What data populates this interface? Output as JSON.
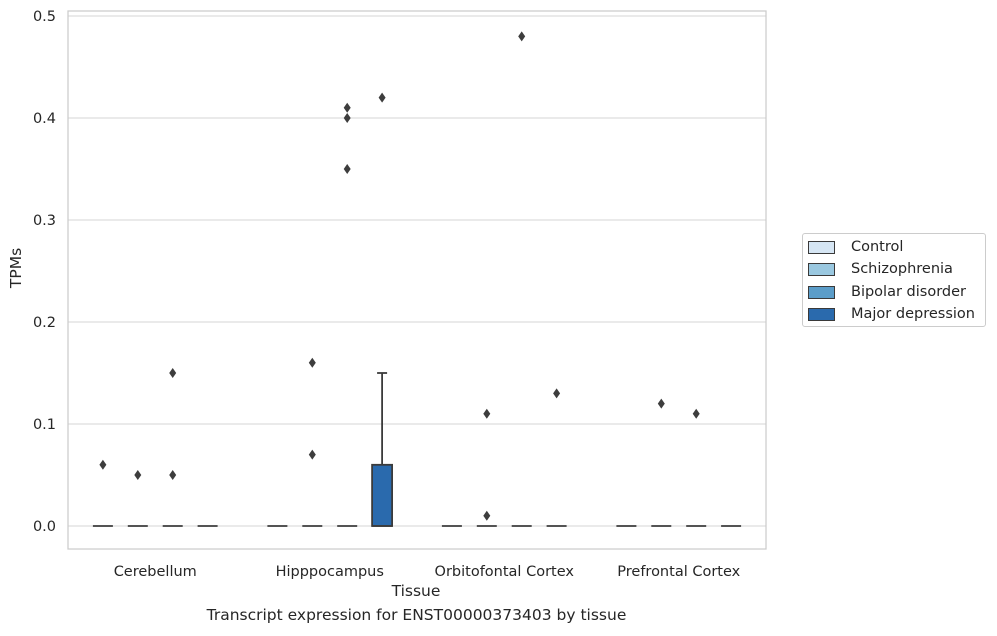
{
  "chart_data": {
    "type": "box",
    "title": "",
    "caption": "Transcript expression for ENST00000373403 by tissue",
    "xlabel": "Tissue",
    "ylabel": "TPMs",
    "ylim": [
      -0.023,
      0.505
    ],
    "yticks": [
      "0.0",
      "0.1",
      "0.2",
      "0.3",
      "0.4",
      "0.5"
    ],
    "ytick_values": [
      0.0,
      0.1,
      0.2,
      0.3,
      0.4,
      0.5
    ],
    "grid": "horizontal",
    "legend_position": "right",
    "categories": [
      "Cerebellum",
      "Hipppocampus",
      "Orbitofontal Cortex",
      "Prefrontal Cortex"
    ],
    "series": [
      {
        "name": "Control",
        "color": "#d6e6f4",
        "boxes": [
          {
            "q1": 0,
            "median": 0,
            "q3": 0,
            "whisker_low": 0,
            "whisker_high": 0,
            "outliers": [
              0.06
            ]
          },
          {
            "q1": 0,
            "median": 0,
            "q3": 0,
            "whisker_low": 0,
            "whisker_high": 0,
            "outliers": []
          },
          {
            "q1": 0,
            "median": 0,
            "q3": 0,
            "whisker_low": 0,
            "whisker_high": 0,
            "outliers": []
          },
          {
            "q1": 0,
            "median": 0,
            "q3": 0,
            "whisker_low": 0,
            "whisker_high": 0,
            "outliers": []
          }
        ]
      },
      {
        "name": "Schizophrenia",
        "color": "#9ac8e0",
        "boxes": [
          {
            "q1": 0,
            "median": 0,
            "q3": 0,
            "whisker_low": 0,
            "whisker_high": 0,
            "outliers": [
              0.05
            ]
          },
          {
            "q1": 0,
            "median": 0,
            "q3": 0,
            "whisker_low": 0,
            "whisker_high": 0,
            "outliers": [
              0.07,
              0.16
            ]
          },
          {
            "q1": 0,
            "median": 0,
            "q3": 0,
            "whisker_low": 0,
            "whisker_high": 0,
            "outliers": [
              0.01,
              0.11
            ]
          },
          {
            "q1": 0,
            "median": 0,
            "q3": 0,
            "whisker_low": 0,
            "whisker_high": 0,
            "outliers": [
              0.12
            ]
          }
        ]
      },
      {
        "name": "Bipolar disorder",
        "color": "#5b9dc9",
        "boxes": [
          {
            "q1": 0,
            "median": 0,
            "q3": 0,
            "whisker_low": 0,
            "whisker_high": 0,
            "outliers": [
              0.05,
              0.15
            ]
          },
          {
            "q1": 0,
            "median": 0,
            "q3": 0,
            "whisker_low": 0,
            "whisker_high": 0,
            "outliers": [
              0.35,
              0.4,
              0.41
            ]
          },
          {
            "q1": 0,
            "median": 0,
            "q3": 0,
            "whisker_low": 0,
            "whisker_high": 0,
            "outliers": [
              0.48
            ]
          },
          {
            "q1": 0,
            "median": 0,
            "q3": 0,
            "whisker_low": 0,
            "whisker_high": 0,
            "outliers": [
              0.11
            ]
          }
        ]
      },
      {
        "name": "Major depression",
        "color": "#2a6aad",
        "boxes": [
          {
            "q1": 0,
            "median": 0,
            "q3": 0,
            "whisker_low": 0,
            "whisker_high": 0,
            "outliers": []
          },
          {
            "q1": 0,
            "median": 0,
            "q3": 0.06,
            "whisker_low": 0,
            "whisker_high": 0.15,
            "outliers": [
              0.42
            ]
          },
          {
            "q1": 0,
            "median": 0,
            "q3": 0,
            "whisker_low": 0,
            "whisker_high": 0,
            "outliers": [
              0.13
            ]
          },
          {
            "q1": 0,
            "median": 0,
            "q3": 0,
            "whisker_low": 0,
            "whisker_high": 0,
            "outliers": []
          }
        ]
      }
    ]
  }
}
